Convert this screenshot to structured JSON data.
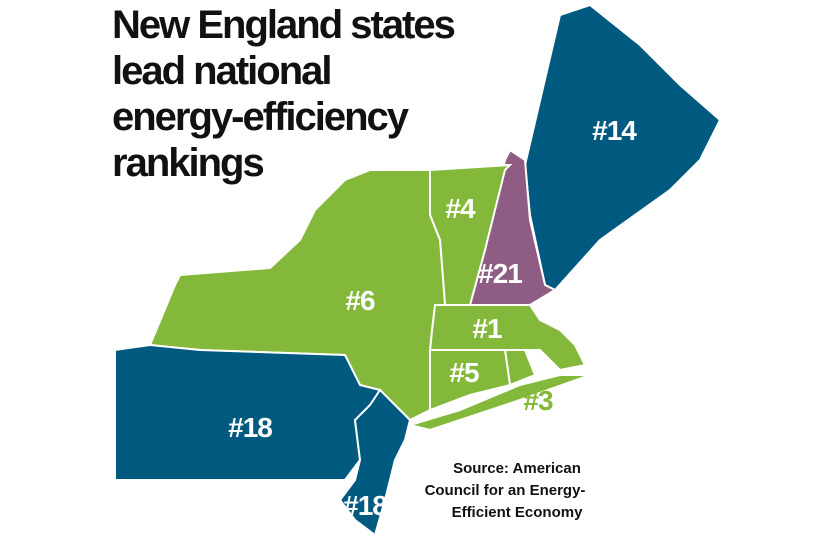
{
  "title_lines": [
    "New England states",
    "lead national",
    "energy-efficiency",
    "rankings"
  ],
  "labels": [
    "#14",
    "#4",
    "#21",
    "#6",
    "#1",
    "#5",
    "#3",
    "#18",
    "#18"
  ],
  "source_lines": [
    "Source: American",
    "Council for an Energy-",
    "Efficient Economy"
  ]
}
